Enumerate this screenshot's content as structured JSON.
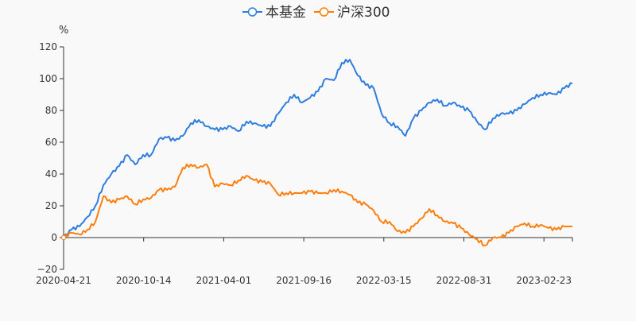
{
  "chart_data": {
    "type": "line",
    "title": "",
    "ylabel": "%",
    "xlabel": "",
    "ylim": [
      -20,
      120
    ],
    "yticks": [
      -20,
      0,
      20,
      40,
      60,
      80,
      100,
      120
    ],
    "x_tick_labels": [
      "2020-04-21",
      "2020-10-14",
      "2021-04-01",
      "2021-09-16",
      "2022-03-15",
      "2022-08-31",
      "2023-02-23"
    ],
    "x_start": "2020-04-21",
    "legend_position": "top-center",
    "series": [
      {
        "name": "本基金",
        "color": "#2f7ddf",
        "values": [
          0,
          5,
          7,
          13,
          20,
          33,
          40,
          45,
          52,
          46,
          52,
          52,
          62,
          63,
          61,
          64,
          72,
          74,
          70,
          68,
          68,
          70,
          67,
          73,
          72,
          70,
          70,
          78,
          85,
          90,
          85,
          88,
          92,
          100,
          99,
          110,
          112,
          102,
          96,
          94,
          78,
          72,
          70,
          64,
          75,
          80,
          85,
          87,
          83,
          85,
          82,
          80,
          73,
          68,
          75,
          78,
          78,
          80,
          84,
          88,
          90,
          91,
          90,
          94,
          97
        ]
      },
      {
        "name": "沪深300",
        "color": "#ff7f0e",
        "values": [
          0,
          3,
          2,
          5,
          10,
          26,
          22,
          24,
          26,
          21,
          24,
          25,
          30,
          30,
          32,
          44,
          46,
          44,
          46,
          32,
          34,
          33,
          36,
          39,
          36,
          35,
          34,
          27,
          28,
          28,
          28,
          29,
          28,
          28,
          30,
          29,
          27,
          22,
          21,
          17,
          10,
          10,
          4,
          3,
          7,
          12,
          18,
          14,
          10,
          9,
          6,
          2,
          -1,
          -5,
          0,
          0,
          3,
          7,
          9,
          7,
          8,
          6,
          5,
          7,
          7
        ]
      }
    ]
  }
}
